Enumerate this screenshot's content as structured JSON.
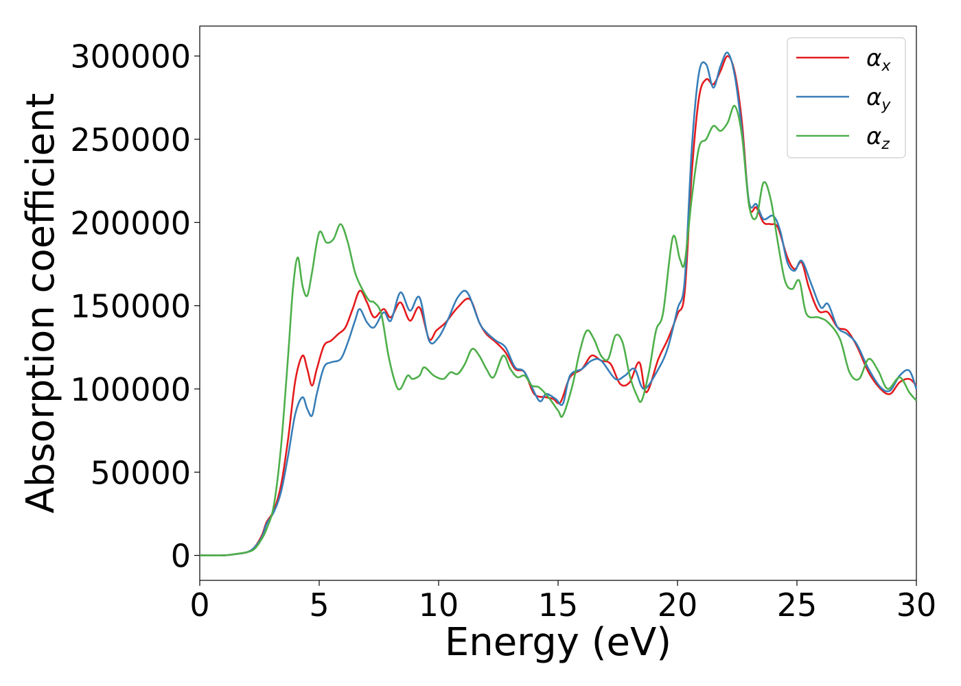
{
  "chart_data": {
    "type": "line",
    "xlabel": "Energy (eV)",
    "ylabel": "Absorption coefficient",
    "xlim": [
      0,
      30
    ],
    "ylim": [
      -15000,
      318000
    ],
    "xticks": [
      "0",
      "5",
      "10",
      "15",
      "20",
      "25",
      "30"
    ],
    "yticks": [
      "0",
      "50000",
      "100000",
      "150000",
      "200000",
      "250000",
      "300000"
    ],
    "grid": false,
    "legend_position": "top-right",
    "series": [
      {
        "name": "αx",
        "symbol": "α",
        "subscript": "x",
        "color": "#e41a1c",
        "points": [
          [
            0,
            0
          ],
          [
            1,
            0
          ],
          [
            1.5,
            800
          ],
          [
            2,
            2000
          ],
          [
            2.3,
            5000
          ],
          [
            2.6,
            12000
          ],
          [
            2.8,
            20000
          ],
          [
            3.1,
            27000
          ],
          [
            3.4,
            42000
          ],
          [
            3.7,
            70000
          ],
          [
            4.0,
            105000
          ],
          [
            4.3,
            120000
          ],
          [
            4.5,
            112000
          ],
          [
            4.7,
            102000
          ],
          [
            4.9,
            112000
          ],
          [
            5.2,
            126000
          ],
          [
            5.5,
            129000
          ],
          [
            5.8,
            133000
          ],
          [
            6.1,
            137000
          ],
          [
            6.4,
            148000
          ],
          [
            6.7,
            159000
          ],
          [
            7.0,
            152000
          ],
          [
            7.3,
            143000
          ],
          [
            7.7,
            148000
          ],
          [
            8.0,
            143000
          ],
          [
            8.4,
            152000
          ],
          [
            8.8,
            141000
          ],
          [
            9.2,
            149000
          ],
          [
            9.6,
            130000
          ],
          [
            9.9,
            135000
          ],
          [
            10.3,
            140000
          ],
          [
            10.8,
            149000
          ],
          [
            11.3,
            154000
          ],
          [
            11.7,
            140000
          ],
          [
            12.0,
            133000
          ],
          [
            12.4,
            128000
          ],
          [
            12.8,
            122000
          ],
          [
            13.2,
            112000
          ],
          [
            13.6,
            110000
          ],
          [
            14.0,
            97000
          ],
          [
            14.5,
            95000
          ],
          [
            14.8,
            94000
          ],
          [
            15.1,
            92000
          ],
          [
            15.5,
            107000
          ],
          [
            16.0,
            112000
          ],
          [
            16.4,
            120000
          ],
          [
            16.8,
            117000
          ],
          [
            17.2,
            115000
          ],
          [
            17.6,
            103000
          ],
          [
            18.0,
            104000
          ],
          [
            18.4,
            116000
          ],
          [
            18.7,
            98000
          ],
          [
            19.2,
            118000
          ],
          [
            19.6,
            130000
          ],
          [
            20.0,
            145000
          ],
          [
            20.3,
            158000
          ],
          [
            20.6,
            230000
          ],
          [
            20.9,
            275000
          ],
          [
            21.2,
            286000
          ],
          [
            21.5,
            283000
          ],
          [
            21.8,
            291000
          ],
          [
            22.1,
            300000
          ],
          [
            22.4,
            290000
          ],
          [
            22.7,
            260000
          ],
          [
            23.0,
            210000
          ],
          [
            23.3,
            209000
          ],
          [
            23.6,
            200000
          ],
          [
            23.9,
            199000
          ],
          [
            24.2,
            197000
          ],
          [
            24.6,
            179000
          ],
          [
            24.9,
            172000
          ],
          [
            25.2,
            176000
          ],
          [
            25.5,
            161000
          ],
          [
            25.9,
            147000
          ],
          [
            26.3,
            146000
          ],
          [
            26.7,
            137000
          ],
          [
            27.1,
            135000
          ],
          [
            27.5,
            126000
          ],
          [
            28.0,
            110000
          ],
          [
            28.5,
            100000
          ],
          [
            28.9,
            97000
          ],
          [
            29.3,
            104000
          ],
          [
            29.7,
            106000
          ],
          [
            30,
            102000
          ]
        ]
      },
      {
        "name": "αy",
        "symbol": "α",
        "subscript": "y",
        "color": "#377eb8",
        "points": [
          [
            0,
            0
          ],
          [
            1,
            0
          ],
          [
            1.5,
            800
          ],
          [
            2,
            2000
          ],
          [
            2.3,
            5000
          ],
          [
            2.6,
            11000
          ],
          [
            2.8,
            19000
          ],
          [
            3.1,
            26000
          ],
          [
            3.4,
            38000
          ],
          [
            3.7,
            60000
          ],
          [
            4.0,
            85000
          ],
          [
            4.3,
            95000
          ],
          [
            4.5,
            88000
          ],
          [
            4.7,
            84000
          ],
          [
            4.9,
            97000
          ],
          [
            5.2,
            113000
          ],
          [
            5.5,
            116000
          ],
          [
            5.9,
            118000
          ],
          [
            6.2,
            128000
          ],
          [
            6.5,
            141000
          ],
          [
            6.7,
            148000
          ],
          [
            7.0,
            140000
          ],
          [
            7.3,
            137000
          ],
          [
            7.7,
            146000
          ],
          [
            8.0,
            141000
          ],
          [
            8.4,
            158000
          ],
          [
            8.8,
            147000
          ],
          [
            9.2,
            155000
          ],
          [
            9.6,
            129000
          ],
          [
            10.0,
            131000
          ],
          [
            10.4,
            142000
          ],
          [
            10.8,
            155000
          ],
          [
            11.2,
            158000
          ],
          [
            11.7,
            140000
          ],
          [
            12.0,
            134000
          ],
          [
            12.4,
            129000
          ],
          [
            12.8,
            125000
          ],
          [
            13.2,
            113000
          ],
          [
            13.6,
            110000
          ],
          [
            14.2,
            93000
          ],
          [
            14.5,
            97000
          ],
          [
            14.9,
            94000
          ],
          [
            15.2,
            91000
          ],
          [
            15.5,
            108000
          ],
          [
            16.0,
            112000
          ],
          [
            16.4,
            117000
          ],
          [
            16.8,
            117000
          ],
          [
            17.4,
            106000
          ],
          [
            17.8,
            108000
          ],
          [
            18.2,
            112000
          ],
          [
            18.6,
            100000
          ],
          [
            19.2,
            112000
          ],
          [
            19.6,
            125000
          ],
          [
            20.0,
            148000
          ],
          [
            20.3,
            165000
          ],
          [
            20.6,
            245000
          ],
          [
            20.9,
            290000
          ],
          [
            21.2,
            295000
          ],
          [
            21.5,
            281000
          ],
          [
            21.8,
            294000
          ],
          [
            22.1,
            302000
          ],
          [
            22.4,
            288000
          ],
          [
            22.7,
            255000
          ],
          [
            23.0,
            212000
          ],
          [
            23.3,
            211000
          ],
          [
            23.6,
            202000
          ],
          [
            24.0,
            204000
          ],
          [
            24.3,
            195000
          ],
          [
            24.6,
            176000
          ],
          [
            24.9,
            171000
          ],
          [
            25.2,
            177000
          ],
          [
            25.6,
            163000
          ],
          [
            26.0,
            149000
          ],
          [
            26.3,
            151000
          ],
          [
            26.7,
            137000
          ],
          [
            27.1,
            133000
          ],
          [
            27.5,
            127000
          ],
          [
            28.0,
            112000
          ],
          [
            28.5,
            101000
          ],
          [
            28.9,
            99000
          ],
          [
            29.3,
            108000
          ],
          [
            29.7,
            111000
          ],
          [
            30,
            100000
          ]
        ]
      },
      {
        "name": "αz",
        "symbol": "α",
        "subscript": "z",
        "color": "#4daf4a",
        "points": [
          [
            0,
            0
          ],
          [
            1,
            0
          ],
          [
            1.5,
            800
          ],
          [
            2,
            2000
          ],
          [
            2.3,
            4000
          ],
          [
            2.6,
            10000
          ],
          [
            2.8,
            16000
          ],
          [
            3.1,
            30000
          ],
          [
            3.4,
            65000
          ],
          [
            3.7,
            120000
          ],
          [
            3.9,
            160000
          ],
          [
            4.1,
            179000
          ],
          [
            4.3,
            162000
          ],
          [
            4.5,
            156000
          ],
          [
            4.7,
            170000
          ],
          [
            5.0,
            194000
          ],
          [
            5.3,
            188000
          ],
          [
            5.6,
            190000
          ],
          [
            5.9,
            199000
          ],
          [
            6.2,
            188000
          ],
          [
            6.5,
            170000
          ],
          [
            6.8,
            160000
          ],
          [
            7.1,
            153000
          ],
          [
            7.3,
            152000
          ],
          [
            7.6,
            145000
          ],
          [
            7.9,
            120000
          ],
          [
            8.2,
            103000
          ],
          [
            8.4,
            100000
          ],
          [
            8.7,
            108000
          ],
          [
            8.9,
            106000
          ],
          [
            9.2,
            108000
          ],
          [
            9.4,
            113000
          ],
          [
            9.8,
            108000
          ],
          [
            10.2,
            106000
          ],
          [
            10.5,
            110000
          ],
          [
            10.8,
            109000
          ],
          [
            11.1,
            115000
          ],
          [
            11.4,
            124000
          ],
          [
            11.7,
            120000
          ],
          [
            12.0,
            112000
          ],
          [
            12.3,
            107000
          ],
          [
            12.7,
            120000
          ],
          [
            13.0,
            112000
          ],
          [
            13.3,
            107000
          ],
          [
            13.6,
            108000
          ],
          [
            13.9,
            102000
          ],
          [
            14.2,
            101000
          ],
          [
            14.6,
            95000
          ],
          [
            15.0,
            87000
          ],
          [
            15.2,
            84000
          ],
          [
            15.6,
            102000
          ],
          [
            15.9,
            122000
          ],
          [
            16.2,
            135000
          ],
          [
            16.5,
            130000
          ],
          [
            16.8,
            120000
          ],
          [
            17.1,
            118000
          ],
          [
            17.4,
            132000
          ],
          [
            17.7,
            128000
          ],
          [
            18.0,
            108000
          ],
          [
            18.3,
            96000
          ],
          [
            18.5,
            93000
          ],
          [
            18.8,
            110000
          ],
          [
            19.1,
            135000
          ],
          [
            19.4,
            146000
          ],
          [
            19.8,
            191000
          ],
          [
            20.1,
            178000
          ],
          [
            20.3,
            176000
          ],
          [
            20.6,
            215000
          ],
          [
            20.9,
            245000
          ],
          [
            21.2,
            250000
          ],
          [
            21.5,
            258000
          ],
          [
            21.8,
            255000
          ],
          [
            22.1,
            260000
          ],
          [
            22.4,
            270000
          ],
          [
            22.7,
            252000
          ],
          [
            23.0,
            210000
          ],
          [
            23.3,
            203000
          ],
          [
            23.6,
            224000
          ],
          [
            23.9,
            214000
          ],
          [
            24.2,
            188000
          ],
          [
            24.5,
            165000
          ],
          [
            24.8,
            160000
          ],
          [
            25.1,
            165000
          ],
          [
            25.4,
            145000
          ],
          [
            25.9,
            143000
          ],
          [
            26.3,
            140000
          ],
          [
            26.8,
            130000
          ],
          [
            27.2,
            110000
          ],
          [
            27.6,
            106000
          ],
          [
            28.0,
            118000
          ],
          [
            28.4,
            111000
          ],
          [
            28.8,
            100000
          ],
          [
            29.3,
            107000
          ],
          [
            29.7,
            98000
          ],
          [
            30,
            93000
          ]
        ]
      }
    ]
  }
}
